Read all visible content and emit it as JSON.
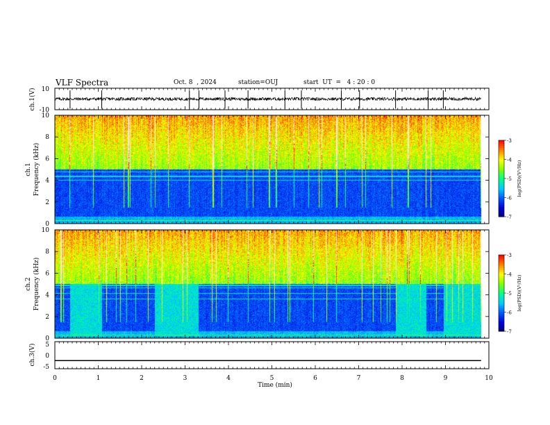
{
  "header": {
    "title": "VLF Spectra",
    "date": "Oct. 8  , 2024",
    "station": "station=OUJ",
    "start": "start  UT  =   4 : 20 : 0"
  },
  "panels": {
    "ch1_waveform": {
      "ylabel": "ch.1(V)",
      "yticks": [
        "10",
        "-10"
      ]
    },
    "ch1_spectrogram": {
      "ylabel_top": "ch.1",
      "ylabel": "Frequency  (kHz)",
      "yticks": [
        "0",
        "2",
        "4",
        "6",
        "8",
        "10"
      ],
      "colorbar_label": "log(PSD)(V²/Hz)",
      "colorbar_ticks": [
        "-3",
        "-4",
        "-5",
        "-6",
        "-7"
      ]
    },
    "ch2_spectrogram": {
      "ylabel_top": "ch.2",
      "ylabel": "Frequency  (kHz)",
      "yticks": [
        "0",
        "2",
        "4",
        "6",
        "8",
        "10"
      ],
      "colorbar_label": "log(PSD)(V²/Hz)",
      "colorbar_ticks": [
        "-3",
        "-4",
        "-5",
        "-6",
        "-7"
      ]
    },
    "ch3_waveform": {
      "ylabel": "ch.3(V)",
      "yticks": [
        "5",
        "0",
        "-5"
      ]
    }
  },
  "xaxis": {
    "label": "Time  (min)",
    "ticks": [
      "0",
      "1",
      "2",
      "3",
      "4",
      "5",
      "6",
      "7",
      "8",
      "9",
      "10"
    ]
  },
  "chart_data": [
    {
      "type": "line",
      "name": "ch.1 waveform",
      "ylabel": "ch.1(V)",
      "xlim": [
        0,
        10
      ],
      "ylim": [
        -10,
        10
      ],
      "description_values": {
        "mean_level": 0,
        "noise_amplitude": 1.5
      },
      "spikes_x": [
        0.35,
        1.08,
        3.1,
        3.32,
        3.92,
        4.45,
        5.3,
        5.68,
        6.6,
        7.02,
        7.85,
        8.6,
        8.95
      ]
    },
    {
      "type": "heatmap",
      "name": "ch.1 spectrogram",
      "xlabel": "Time  (min)",
      "ylabel": "Frequency  (kHz)",
      "xlim": [
        0,
        10
      ],
      "ylim": [
        0,
        10
      ],
      "zlim": [
        -7,
        -3
      ],
      "colormap": [
        "#000066",
        "#0000cc",
        "#0050ff",
        "#00c8ff",
        "#00ff80",
        "#80ff00",
        "#ffff00",
        "#ff8000",
        "#ff0000",
        "#ffffff"
      ]
    },
    {
      "type": "heatmap",
      "name": "ch.2 spectrogram",
      "xlabel": "Time  (min)",
      "ylabel": "Frequency  (kHz)",
      "xlim": [
        0,
        10
      ],
      "ylim": [
        0,
        10
      ],
      "zlim": [
        -7,
        -3
      ],
      "bright_low_freq_intervals_min": [
        [
          0.35,
          1.08
        ],
        [
          2.3,
          3.3
        ],
        [
          7.85,
          8.55
        ],
        [
          8.95,
          9.85
        ]
      ]
    },
    {
      "type": "line",
      "name": "ch.3 waveform",
      "ylabel": "ch.3(V)",
      "xlim": [
        0,
        10
      ],
      "ylim": [
        -5,
        5
      ],
      "constant_value": -2
    }
  ]
}
